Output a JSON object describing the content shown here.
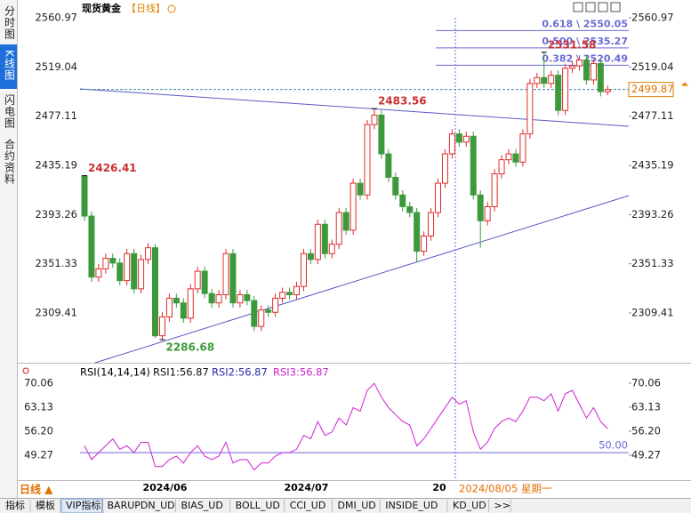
{
  "chart_data": {
    "type": "candlestick",
    "title": "现货黄金",
    "period": "【日线】",
    "sidebar": [
      "分时图",
      "K线图",
      "闪电图",
      "合约资料"
    ],
    "categories": [
      null,
      null,
      null,
      null,
      null,
      null,
      null,
      null,
      null,
      null,
      null,
      "2024/06",
      null,
      null,
      null,
      null,
      null,
      null,
      null,
      null,
      null,
      null,
      null,
      null,
      null,
      null,
      null,
      null,
      null,
      null,
      null,
      "2024/07",
      null,
      null,
      null,
      null,
      null,
      null,
      null,
      null,
      null,
      null,
      null,
      null,
      null,
      null,
      null,
      null,
      null,
      null,
      null,
      null,
      "20",
      null,
      null,
      null,
      null,
      null,
      null,
      null,
      null,
      null,
      null,
      null,
      null,
      null,
      null,
      null,
      null,
      null,
      null,
      null,
      null,
      null,
      null
    ],
    "open": [
      2426,
      2392,
      2340,
      2347,
      2356,
      2352,
      2337,
      2360,
      2330,
      2355,
      2365,
      2290,
      2306,
      2322,
      2318,
      2305,
      2330,
      2345,
      2326,
      2318,
      2325,
      2360,
      2318,
      2325,
      2320,
      2298,
      2312,
      2310,
      2322,
      2327,
      2325,
      2332,
      2360,
      2355,
      2385,
      2360,
      2368,
      2395,
      2380,
      2420,
      2410,
      2470,
      2478,
      2445,
      2425,
      2410,
      2400,
      2395,
      2362,
      2375,
      2395,
      2420,
      2445,
      2462,
      2455,
      2460,
      2410,
      2388,
      2400,
      2428,
      2440,
      2445,
      2438,
      2462,
      2505,
      2510,
      2505,
      2512,
      2482,
      2518,
      2520,
      2525,
      2508,
      2522,
      2498
    ],
    "high": [
      2426.41,
      2396,
      2351,
      2360,
      2360,
      2356,
      2364,
      2364,
      2359,
      2369,
      2368,
      2310,
      2326,
      2326,
      2322,
      2334,
      2349,
      2349,
      2330,
      2329,
      2364,
      2364,
      2329,
      2329,
      2324,
      2316,
      2316,
      2326,
      2331,
      2331,
      2336,
      2364,
      2364,
      2389,
      2389,
      2372,
      2399,
      2399,
      2424,
      2424,
      2474,
      2483.56,
      2482,
      2449,
      2429,
      2414,
      2404,
      2399,
      2379,
      2399,
      2424,
      2449,
      2466,
      2466,
      2464,
      2464,
      2414,
      2404,
      2432,
      2444,
      2449,
      2449,
      2466,
      2509,
      2514,
      2531.58,
      2516,
      2516,
      2522,
      2524,
      2529,
      2529,
      2526,
      2526,
      2503
    ],
    "low": [
      2388,
      2336,
      2336,
      2343,
      2348,
      2333,
      2333,
      2326,
      2326,
      2351,
      2288,
      2286.68,
      2302,
      2314,
      2301,
      2301,
      2326,
      2322,
      2314,
      2314,
      2321,
      2314,
      2314,
      2316,
      2294,
      2294,
      2306,
      2306,
      2318,
      2321,
      2321,
      2328,
      2351,
      2351,
      2356,
      2356,
      2364,
      2376,
      2376,
      2406,
      2406,
      2466,
      2441,
      2421,
      2406,
      2396,
      2391,
      2353,
      2358,
      2371,
      2391,
      2416,
      2441,
      2451,
      2451,
      2406,
      2365,
      2384,
      2396,
      2424,
      2436,
      2434,
      2434,
      2458,
      2501,
      2501,
      2501,
      2478,
      2478,
      2514,
      2516,
      2504,
      2504,
      2494,
      2495
    ],
    "close": [
      2392,
      2340,
      2347,
      2356,
      2352,
      2337,
      2360,
      2330,
      2355,
      2365,
      2290,
      2306,
      2322,
      2318,
      2305,
      2330,
      2345,
      2326,
      2318,
      2325,
      2360,
      2318,
      2325,
      2320,
      2298,
      2312,
      2310,
      2322,
      2327,
      2325,
      2332,
      2360,
      2355,
      2385,
      2360,
      2368,
      2395,
      2380,
      2420,
      2410,
      2470,
      2478,
      2445,
      2425,
      2410,
      2400,
      2395,
      2362,
      2375,
      2395,
      2420,
      2445,
      2462,
      2455,
      2460,
      2410,
      2388,
      2400,
      2428,
      2440,
      2445,
      2438,
      2462,
      2505,
      2510,
      2505,
      2512,
      2482,
      2518,
      2520,
      2525,
      2508,
      2522,
      2498,
      2499.87
    ],
    "up_color": "#e02b2b",
    "down_color": "#3c9a3c",
    "ylim": [
      2267.02,
      2567.03
    ],
    "yticks": [
      2309.41,
      2351.33,
      2393.26,
      2435.19,
      2477.11,
      2519.04,
      2560.97
    ],
    "last_price": 2499.87,
    "fib_levels": [
      {
        "value": 2550.05,
        "label": "0.618 \\ 2550.05"
      },
      {
        "value": 2535.27,
        "label": "0.500 \\ 2535.27"
      },
      {
        "value": 2520.49,
        "label": "0.382 \\ 2520.49"
      }
    ],
    "cursor_label": "2024/08/05 星期一",
    "period_button": "日线 ▲",
    "rsi": {
      "params": "RSI(14,14,14)",
      "legend": [
        "RSI1:56.87",
        "RSI2:56.87",
        "RSI3:56.87"
      ],
      "legend_colors": [
        "#111111",
        "#2a2aa8",
        "#d020d0"
      ],
      "color": "#d020d0",
      "values": [
        52,
        48,
        50,
        52,
        54,
        51,
        52,
        50,
        53,
        53,
        46,
        46,
        48,
        49,
        47,
        50,
        52,
        49,
        48,
        49,
        53,
        47,
        48,
        48,
        45,
        47,
        47,
        49,
        50,
        50,
        51,
        55,
        54,
        59,
        55,
        56,
        60,
        58,
        63,
        62,
        68,
        70,
        66,
        63,
        61,
        59,
        58,
        52,
        54,
        57,
        60,
        63,
        66,
        64,
        65,
        56,
        51,
        53,
        57,
        59,
        60,
        59,
        62,
        66,
        66,
        65,
        67,
        62,
        67,
        68,
        64,
        60,
        63,
        59,
        56.87
      ],
      "ylim": [
        42.08,
        74.94
      ],
      "yticks": [
        {
          "value": 49.27,
          "label": "49.27"
        },
        {
          "value": 56.2,
          "label": "56.20"
        },
        63.13,
        70.06
      ],
      "reference": {
        "value": 50,
        "label": "50.00"
      }
    },
    "toolbar": [
      "指标",
      "模板",
      "VIP指标",
      "BARUPDN_UD",
      "BIAS_UD",
      "BOLL_UD",
      "CCI_UD",
      "DMI_UD",
      "INSIDE_UD",
      "KD_UD",
      ">>"
    ]
  }
}
